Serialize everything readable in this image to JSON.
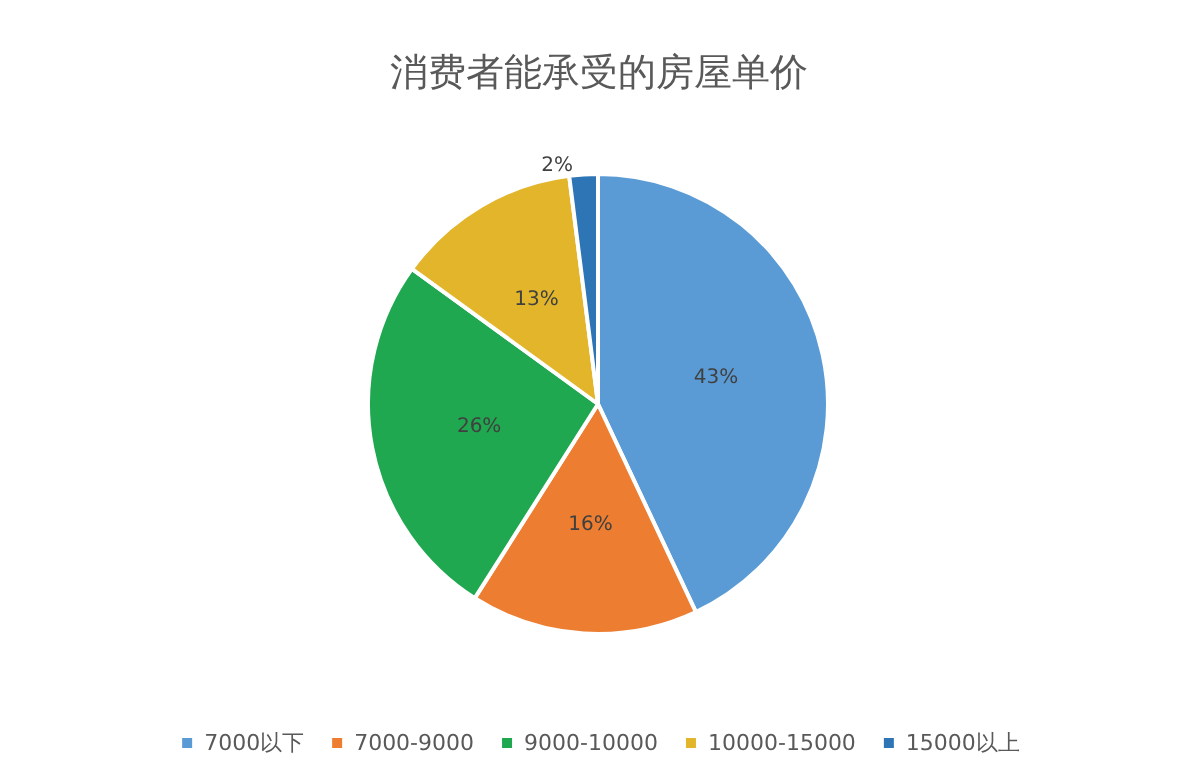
{
  "chart_data": {
    "type": "pie",
    "title": "消费者能承受的房屋单价",
    "categories": [
      "7000以下",
      "7000-9000",
      "9000-10000",
      "10000-15000",
      "15000以上"
    ],
    "values": [
      43,
      16,
      26,
      13,
      2
    ],
    "colors": [
      "#5b9bd5",
      "#ed7d31",
      "#1fa84f",
      "#e2b52a",
      "#2e75b6"
    ],
    "value_labels": [
      "43%",
      "16%",
      "26%",
      "13%",
      "2%"
    ],
    "legend": "bottom"
  }
}
